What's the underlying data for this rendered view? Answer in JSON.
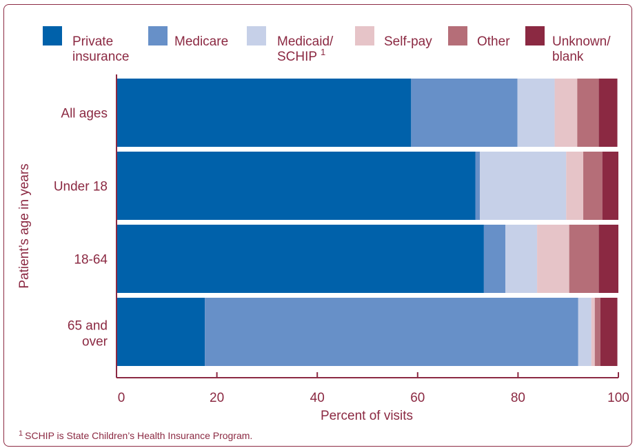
{
  "chart_data": {
    "type": "bar",
    "orientation": "horizontal",
    "stacked": true,
    "categories": [
      "All ages",
      "Under 18",
      "18-64",
      "65 and over"
    ],
    "series": [
      {
        "name": "Private insurance",
        "color": "#0061aa",
        "values": [
          58.7,
          71.5,
          73.2,
          17.6
        ]
      },
      {
        "name": "Medicare",
        "color": "#6790c8",
        "values": [
          21.2,
          0.9,
          4.3,
          74.4
        ]
      },
      {
        "name": "Medicaid/ SCHIP 1",
        "color": "#c6d0e8",
        "values": [
          7.4,
          17.2,
          6.3,
          2.6
        ]
      },
      {
        "name": "Self-pay",
        "color": "#e6c4c8",
        "values": [
          4.5,
          3.4,
          6.4,
          0.7
        ]
      },
      {
        "name": "Other",
        "color": "#b56e78",
        "values": [
          4.3,
          3.8,
          5.9,
          1.1
        ]
      },
      {
        "name": "Unknown/ blank",
        "color": "#8b2942",
        "values": [
          3.7,
          3.2,
          3.9,
          3.4
        ]
      }
    ],
    "xlabel": "Percent of visits",
    "ylabel": "Patient’s age in years",
    "xlim": [
      0,
      100
    ],
    "xticks": [
      0,
      20,
      40,
      60,
      80,
      100
    ],
    "legend_position": "top",
    "grid": false
  },
  "footnote": {
    "marker": "1",
    "text": "SCHIP is State Children’s Health Insurance Program."
  },
  "colors": {
    "axis": "#8b2942",
    "text": "#8b2942"
  }
}
